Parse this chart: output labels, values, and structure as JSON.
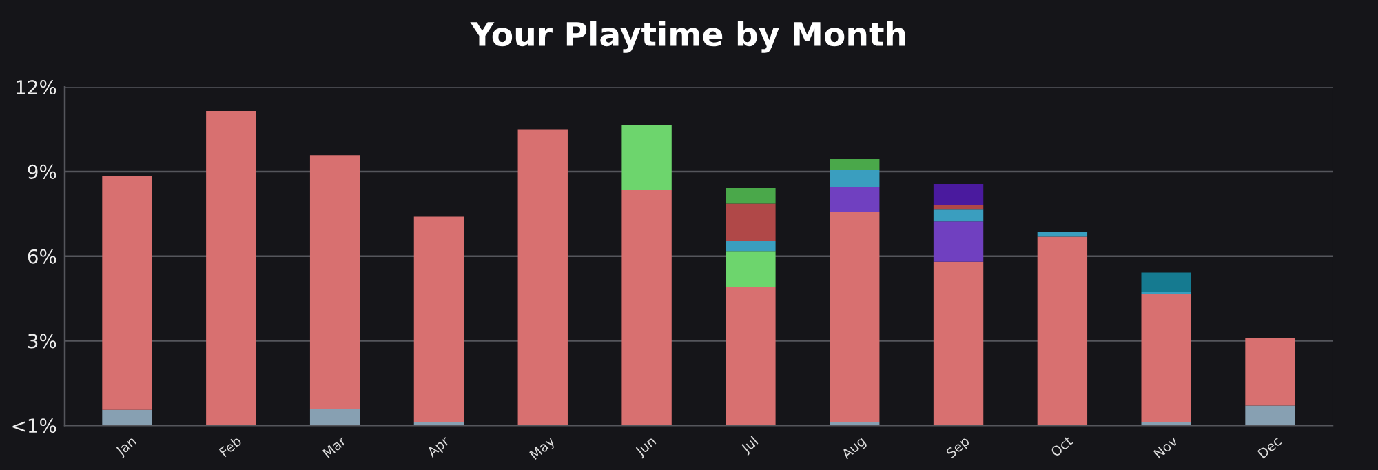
{
  "chart_data": {
    "type": "bar",
    "title": "Your Playtime by Month",
    "stacked": true,
    "categories": [
      "Jan",
      "Feb",
      "Mar",
      "Apr",
      "May",
      "Jun",
      "Jul",
      "Aug",
      "Sep",
      "Oct",
      "Nov",
      "Dec"
    ],
    "series": [
      {
        "color": "#87a0b2",
        "values": [
          0.55,
          null,
          0.58,
          0.1,
          null,
          null,
          null,
          0.1,
          null,
          null,
          0.13,
          0.7
        ]
      },
      {
        "color": "#d87070",
        "values": [
          8.3,
          11.15,
          9.0,
          7.3,
          10.5,
          8.35,
          4.9,
          7.48,
          5.8,
          6.69,
          4.52,
          2.39
        ]
      },
      {
        "color": "#6dd56d",
        "values": [
          null,
          null,
          null,
          null,
          null,
          2.3,
          1.28,
          null,
          null,
          null,
          null,
          null
        ]
      },
      {
        "color": "#7040c0",
        "values": [
          null,
          null,
          null,
          null,
          null,
          null,
          null,
          0.86,
          1.43,
          null,
          null,
          null
        ]
      },
      {
        "color": "#3a9ebf",
        "values": [
          null,
          null,
          null,
          null,
          null,
          null,
          0.36,
          0.62,
          0.44,
          0.18,
          0.08,
          null
        ]
      },
      {
        "color": "#b04848",
        "values": [
          null,
          null,
          null,
          null,
          null,
          null,
          1.32,
          null,
          0.13,
          null,
          null,
          null
        ]
      },
      {
        "color": "#4aa84a",
        "values": [
          null,
          null,
          null,
          null,
          null,
          null,
          0.55,
          0.38,
          null,
          null,
          null,
          null
        ]
      },
      {
        "color": "#4a1a9e",
        "values": [
          null,
          null,
          null,
          null,
          null,
          null,
          null,
          null,
          0.76,
          null,
          null,
          null
        ]
      },
      {
        "color": "#157a90",
        "values": [
          null,
          null,
          null,
          null,
          null,
          null,
          null,
          null,
          null,
          null,
          0.69,
          null
        ]
      }
    ],
    "ylim": [
      0,
      12
    ],
    "yticks": [
      {
        "value": 0,
        "label": "<1%"
      },
      {
        "value": 3,
        "label": "3%"
      },
      {
        "value": 6,
        "label": "6%"
      },
      {
        "value": 9,
        "label": "9%"
      },
      {
        "value": 12,
        "label": "12%"
      }
    ],
    "grid": "y",
    "legend": false
  }
}
